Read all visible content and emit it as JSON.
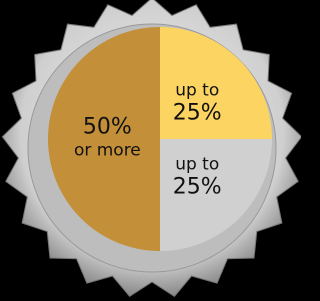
{
  "chart_data": {
    "type": "pie",
    "values": [
      25,
      25,
      50
    ],
    "value_labels": [
      [
        "up to",
        "25%"
      ],
      [
        "up to",
        "25%"
      ],
      [
        "50%",
        "or more"
      ]
    ],
    "colors": [
      "#fcd462",
      "#d0d0d0",
      "#c38f38"
    ]
  }
}
